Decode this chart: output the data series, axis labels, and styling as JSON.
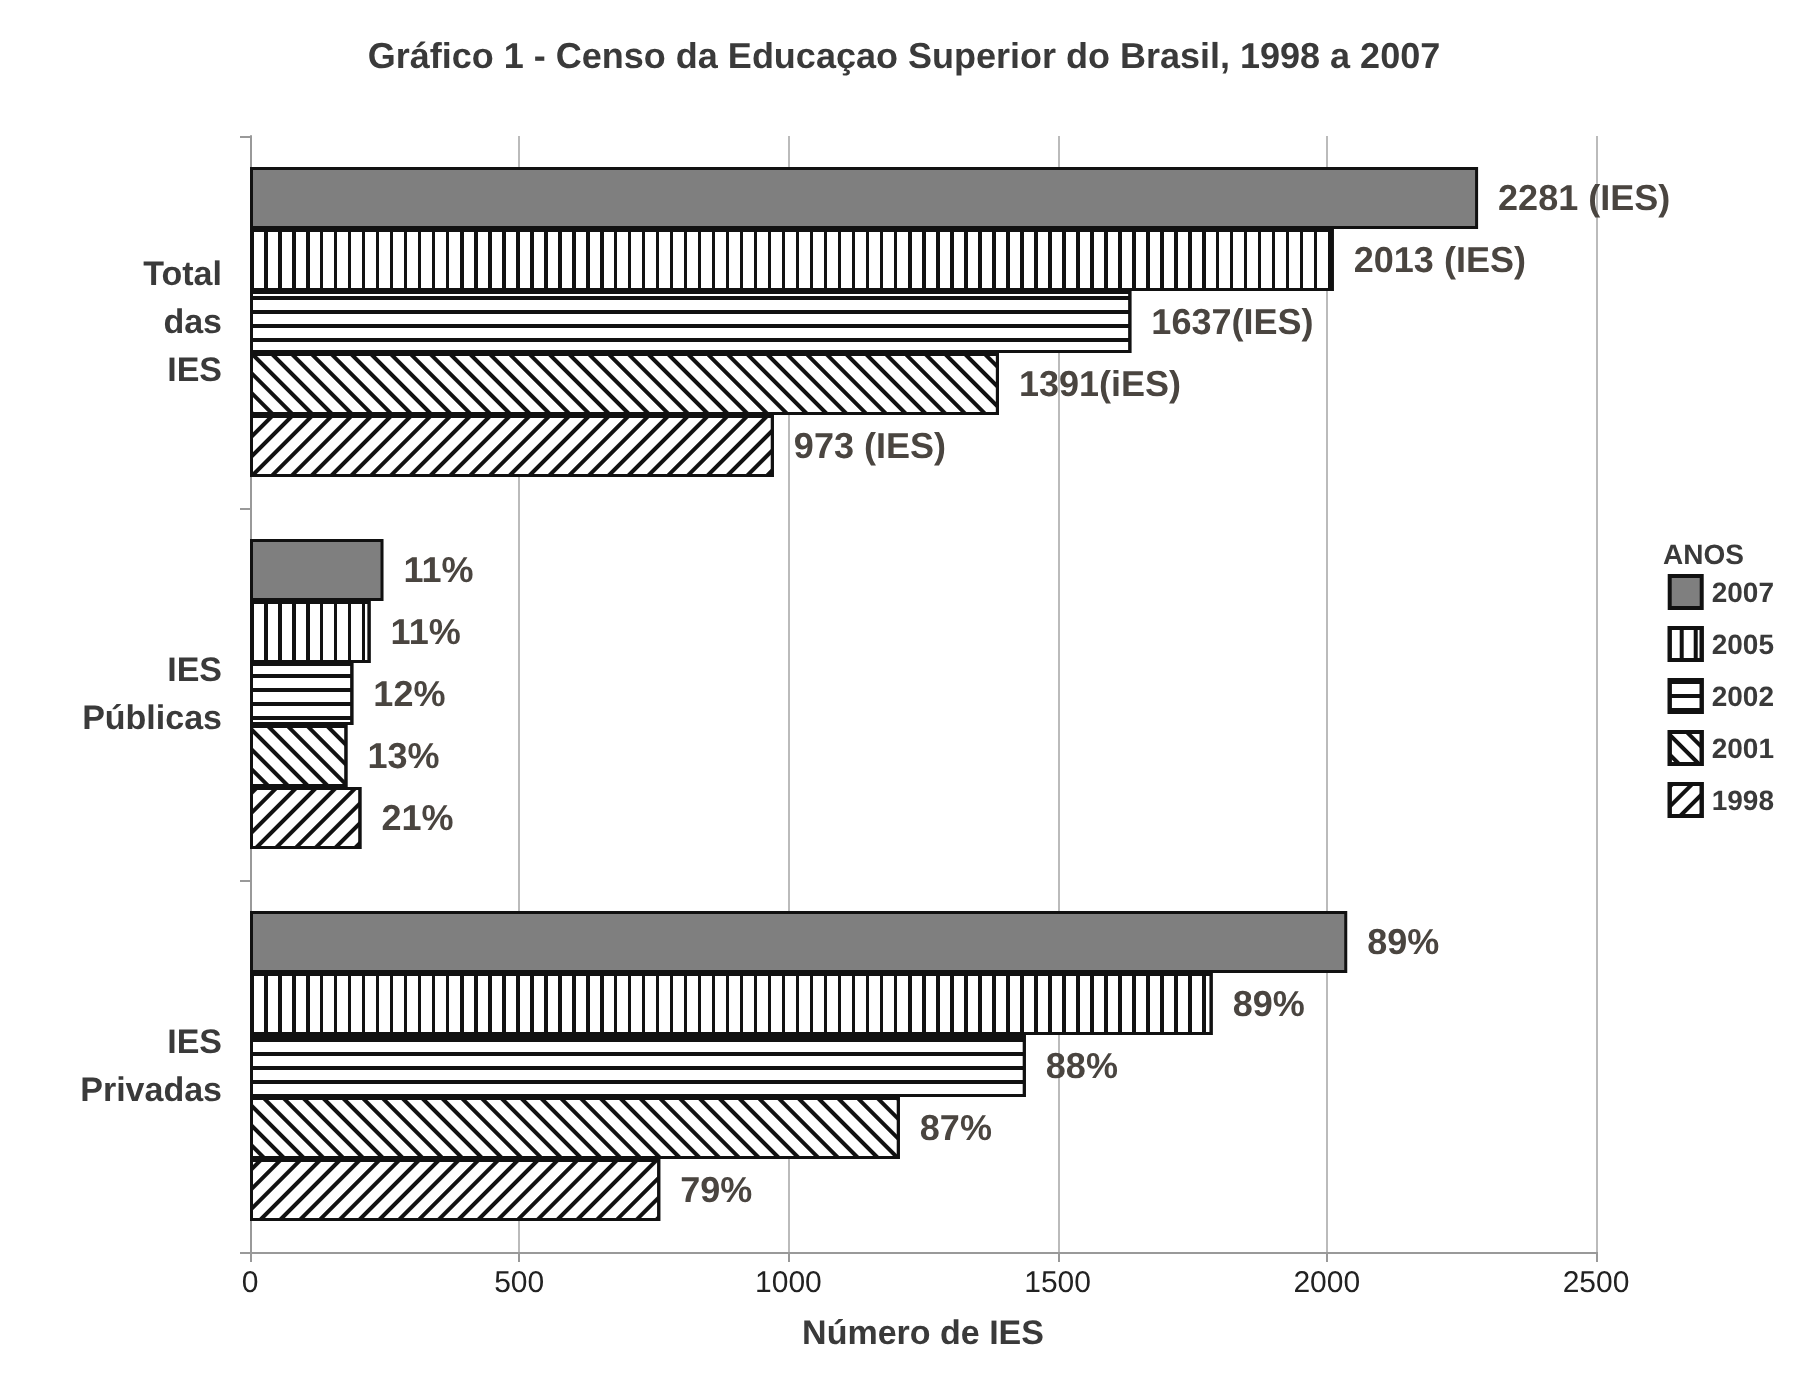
{
  "chart_data": {
    "type": "bar",
    "orientation": "horizontal",
    "title": "Gráfico 1 - Censo da Educaçao Superior do Brasil, 1998 a 2007",
    "xlabel": "Número de IES",
    "legend_title": "ANOS",
    "categories": [
      "Total das IES",
      "IES Públicas",
      "IES Privadas"
    ],
    "series": [
      {
        "name": "2007",
        "color": "#7f7f7f",
        "values": [
          2281,
          248,
          2038
        ],
        "value_labels": [
          "2281 (IES)",
          null,
          null
        ]
      },
      {
        "name": "2005",
        "color": "#ffffff",
        "values": [
          2013,
          224,
          1788
        ],
        "value_labels": [
          "2013 (IES)",
          null,
          null
        ]
      },
      {
        "name": "2002",
        "color": "#ffffff",
        "values": [
          1637,
          192,
          1441
        ],
        "value_labels": [
          "1637(IES)",
          null,
          null
        ]
      },
      {
        "name": "2001",
        "color": "#ffffff",
        "values": [
          1391,
          181,
          1207
        ],
        "value_labels": [
          "1391(iES)",
          null,
          null
        ]
      },
      {
        "name": "1998",
        "color": "#ffffff",
        "values": [
          973,
          207,
          762
        ],
        "value_labels": [
          "973 (IES)",
          null,
          null
        ]
      }
    ],
    "annotations": [
      "11%",
      "11%",
      "12%",
      "13%",
      "21%",
      "89%",
      "89%",
      "88%",
      "87%",
      "79%"
    ],
    "xlim": [
      0,
      2500
    ],
    "xticks": [
      0,
      500,
      1000,
      1500,
      2000,
      2500
    ],
    "grid": "x",
    "legend": "right"
  }
}
